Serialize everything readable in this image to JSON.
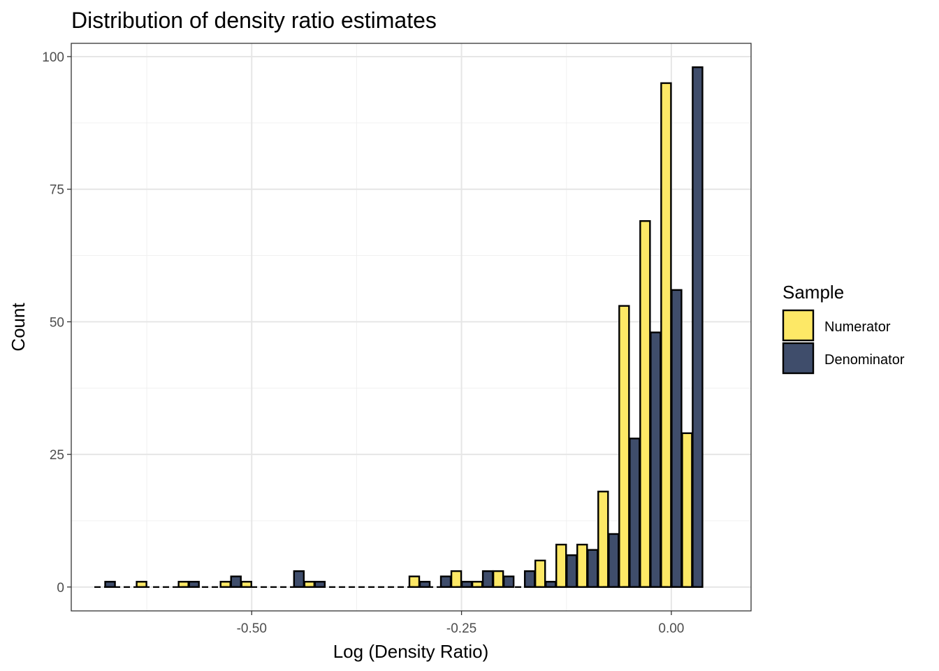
{
  "chart_data": {
    "type": "bar",
    "title": "Distribution of density ratio estimates",
    "xlabel": "Log (Density Ratio)",
    "ylabel": "Count",
    "xlim": [
      -0.715,
      0.095
    ],
    "ylim": [
      -4.5,
      102.5
    ],
    "x_ticks": [
      {
        "value": -0.5,
        "label": "-0.50"
      },
      {
        "value": -0.25,
        "label": "-0.25"
      },
      {
        "value": 0.0,
        "label": "0.00"
      }
    ],
    "y_ticks": [
      {
        "value": 0,
        "label": "0"
      },
      {
        "value": 25,
        "label": "25"
      },
      {
        "value": 50,
        "label": "50"
      },
      {
        "value": 75,
        "label": "75"
      },
      {
        "value": 100,
        "label": "100"
      }
    ],
    "grid": true,
    "legend_position": "right",
    "legend_title": "Sample",
    "bin_width": 0.025,
    "series": [
      {
        "name": "Numerator",
        "color": "#FDE866",
        "values": [
          0,
          1,
          1,
          1,
          1,
          0,
          1,
          0,
          0,
          0,
          2,
          0,
          3,
          1,
          3,
          0,
          5,
          8,
          8,
          18,
          53,
          69,
          95,
          29
        ]
      },
      {
        "name": "Denominator",
        "color": "#3F4D6B",
        "values": [
          1,
          0,
          1,
          2,
          0,
          3,
          1,
          0,
          0,
          0,
          1,
          2,
          1,
          3,
          2,
          3,
          1,
          6,
          7,
          10,
          28,
          48,
          56,
          98
        ]
      }
    ],
    "bin_centers": [
      -0.675,
      -0.625,
      -0.575,
      -0.525,
      -0.5,
      -0.45,
      -0.425,
      -0.4,
      -0.375,
      -0.325,
      -0.3,
      -0.275,
      -0.25,
      -0.225,
      -0.2,
      -0.175,
      -0.15,
      -0.125,
      -0.1,
      -0.075,
      -0.05,
      -0.025,
      0.0,
      0.025
    ],
    "bin_values_note": ""
  }
}
